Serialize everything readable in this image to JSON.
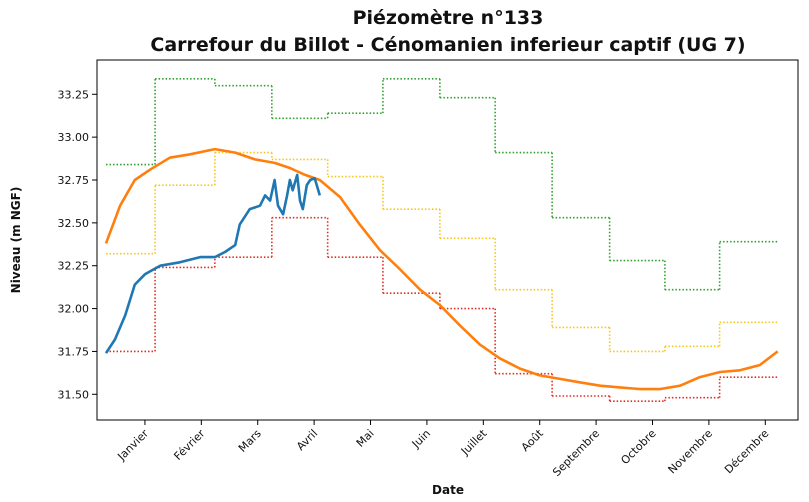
{
  "chart_data": {
    "type": "line",
    "title": "Piézomètre n°133",
    "subtitle": "Carrefour du Billot - Cénomanien inferieur captif (UG 7)",
    "xlabel": "Date",
    "ylabel": "Niveau (m NGF)",
    "xlim": [
      0.15,
      12.58
    ],
    "ylim": [
      31.35,
      33.45
    ],
    "xticks": [
      {
        "value": 1,
        "label": "Janvier"
      },
      {
        "value": 2,
        "label": "Février"
      },
      {
        "value": 3,
        "label": "Mars"
      },
      {
        "value": 4,
        "label": "Avril"
      },
      {
        "value": 5,
        "label": "Mai"
      },
      {
        "value": 6,
        "label": "Juin"
      },
      {
        "value": 7,
        "label": "Juillet"
      },
      {
        "value": 8,
        "label": "Août"
      },
      {
        "value": 9,
        "label": "Septembre"
      },
      {
        "value": 10,
        "label": "Octobre"
      },
      {
        "value": 11,
        "label": "Novembre"
      },
      {
        "value": 12,
        "label": "Décembre"
      }
    ],
    "yticks": [
      {
        "value": 31.5,
        "label": "31.50"
      },
      {
        "value": 31.75,
        "label": "31.75"
      },
      {
        "value": 32,
        "label": "32.00"
      },
      {
        "value": 32.25,
        "label": "32.25"
      },
      {
        "value": 32.5,
        "label": "32.50"
      },
      {
        "value": 32.75,
        "label": "32.75"
      },
      {
        "value": 33,
        "label": "33.00"
      },
      {
        "value": 33.25,
        "label": "33.25"
      }
    ],
    "step_x": [
      0.31,
      1.18,
      2.24,
      3.25,
      4.24,
      5.22,
      6.23,
      7.21,
      8.22,
      9.24,
      10.22,
      11.19,
      12.22
    ],
    "step_series": [
      {
        "color": "#2ca02c",
        "values": [
          32.84,
          33.34,
          33.3,
          33.11,
          33.14,
          33.34,
          33.23,
          32.91,
          32.53,
          32.28,
          32.11,
          32.39
        ]
      },
      {
        "color": "#f5c518",
        "values": [
          32.32,
          32.72,
          32.91,
          32.87,
          32.77,
          32.58,
          32.41,
          32.11,
          31.89,
          31.75,
          31.78,
          31.92
        ]
      },
      {
        "color": "#e02a1f",
        "values": [
          31.75,
          32.24,
          32.3,
          32.53,
          32.3,
          32.09,
          32.0,
          31.62,
          31.49,
          31.46,
          31.48,
          31.6
        ]
      }
    ],
    "series": [
      {
        "color": "#ff7f0e",
        "x": [
          0.31,
          0.56,
          0.82,
          1.09,
          1.44,
          1.8,
          2.24,
          2.6,
          2.95,
          3.3,
          3.57,
          3.84,
          4.1,
          4.46,
          4.81,
          5.17,
          5.52,
          5.88,
          6.23,
          6.59,
          6.94,
          7.29,
          7.65,
          8.0,
          8.36,
          8.71,
          9.07,
          9.42,
          9.78,
          10.13,
          10.49,
          10.84,
          11.2,
          11.55,
          11.9,
          12.22
        ],
        "values": [
          32.38,
          32.6,
          32.75,
          32.81,
          32.88,
          32.9,
          32.93,
          32.91,
          32.87,
          32.85,
          32.82,
          32.78,
          32.75,
          32.65,
          32.49,
          32.34,
          32.23,
          32.11,
          32.02,
          31.9,
          31.79,
          31.71,
          31.65,
          31.61,
          31.59,
          31.57,
          31.55,
          31.54,
          31.53,
          31.53,
          31.55,
          31.6,
          31.63,
          31.64,
          31.67,
          31.75
        ]
      },
      {
        "color": "#1f77b4",
        "x": [
          0.31,
          0.47,
          0.65,
          0.82,
          1.0,
          1.27,
          1.62,
          1.98,
          2.24,
          2.42,
          2.6,
          2.68,
          2.86,
          3.04,
          3.13,
          3.22,
          3.3,
          3.36,
          3.45,
          3.52,
          3.57,
          3.62,
          3.7,
          3.75,
          3.8,
          3.87,
          3.93,
          4.01,
          4.1
        ],
        "values": [
          31.74,
          31.82,
          31.96,
          32.14,
          32.2,
          32.25,
          32.27,
          32.3,
          32.3,
          32.33,
          32.37,
          32.49,
          32.58,
          32.6,
          32.66,
          32.63,
          32.75,
          32.6,
          32.55,
          32.66,
          32.75,
          32.69,
          32.78,
          32.63,
          32.58,
          32.72,
          32.75,
          32.76,
          32.66
        ]
      }
    ]
  }
}
